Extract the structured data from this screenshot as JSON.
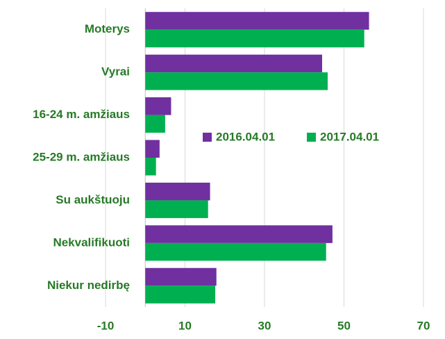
{
  "chart_data": {
    "type": "hbar",
    "categories": [
      "Moterys",
      "Vyrai",
      "16-24 m. amžiaus",
      "25-29 m. amžiaus",
      "Su aukštuoju",
      "Nekvalifikuoti",
      "Niekur nedirbę"
    ],
    "series": [
      {
        "name": "2016.04.01",
        "color": "#7030a0",
        "values": [
          56.3,
          44.5,
          6.5,
          3.6,
          16.3,
          47.1,
          17.9
        ]
      },
      {
        "name": "2017.04.01",
        "color": "#00b050",
        "values": [
          55.1,
          45.9,
          5.0,
          2.7,
          15.8,
          45.5,
          17.6
        ]
      }
    ],
    "xlim": [
      -10,
      70
    ],
    "xticks": [
      -10,
      10,
      30,
      50,
      70
    ],
    "grid": true
  }
}
